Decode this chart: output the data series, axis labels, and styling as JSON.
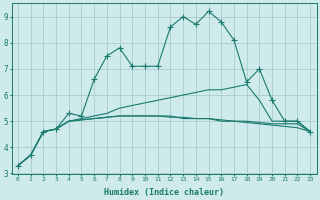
{
  "xlabel": "Humidex (Indice chaleur)",
  "x_values": [
    0,
    1,
    2,
    3,
    4,
    5,
    6,
    7,
    8,
    9,
    10,
    11,
    12,
    13,
    14,
    15,
    16,
    17,
    18,
    19,
    20,
    21,
    22,
    23
  ],
  "line1": [
    3.3,
    3.7,
    4.6,
    4.7,
    5.3,
    5.2,
    6.6,
    7.5,
    7.8,
    7.1,
    7.1,
    7.1,
    8.6,
    9.0,
    8.7,
    9.2,
    8.8,
    8.1,
    6.5,
    7.0,
    5.8,
    5.0,
    5.0,
    4.6
  ],
  "line2": [
    3.3,
    3.7,
    4.6,
    4.7,
    5.0,
    5.1,
    5.2,
    5.3,
    5.5,
    5.6,
    5.7,
    5.8,
    5.9,
    6.0,
    6.1,
    6.2,
    6.2,
    6.3,
    6.4,
    5.8,
    5.0,
    5.0,
    5.0,
    4.6
  ],
  "line3": [
    3.3,
    3.7,
    4.6,
    4.7,
    5.0,
    5.05,
    5.1,
    5.15,
    5.2,
    5.2,
    5.2,
    5.2,
    5.15,
    5.15,
    5.1,
    5.1,
    5.05,
    5.0,
    5.0,
    4.95,
    4.9,
    4.9,
    4.9,
    4.6
  ],
  "line4": [
    3.3,
    3.7,
    4.6,
    4.7,
    5.0,
    5.05,
    5.1,
    5.15,
    5.2,
    5.2,
    5.2,
    5.2,
    5.2,
    5.1,
    5.1,
    5.1,
    5.0,
    5.0,
    4.95,
    4.9,
    4.85,
    4.8,
    4.75,
    4.6
  ],
  "line_color": "#1a7a6e",
  "bg_color": "#ceeaea",
  "grid_color": "#aacccc",
  "ylim": [
    3.0,
    9.5
  ],
  "xlim": [
    -0.5,
    23.5
  ]
}
